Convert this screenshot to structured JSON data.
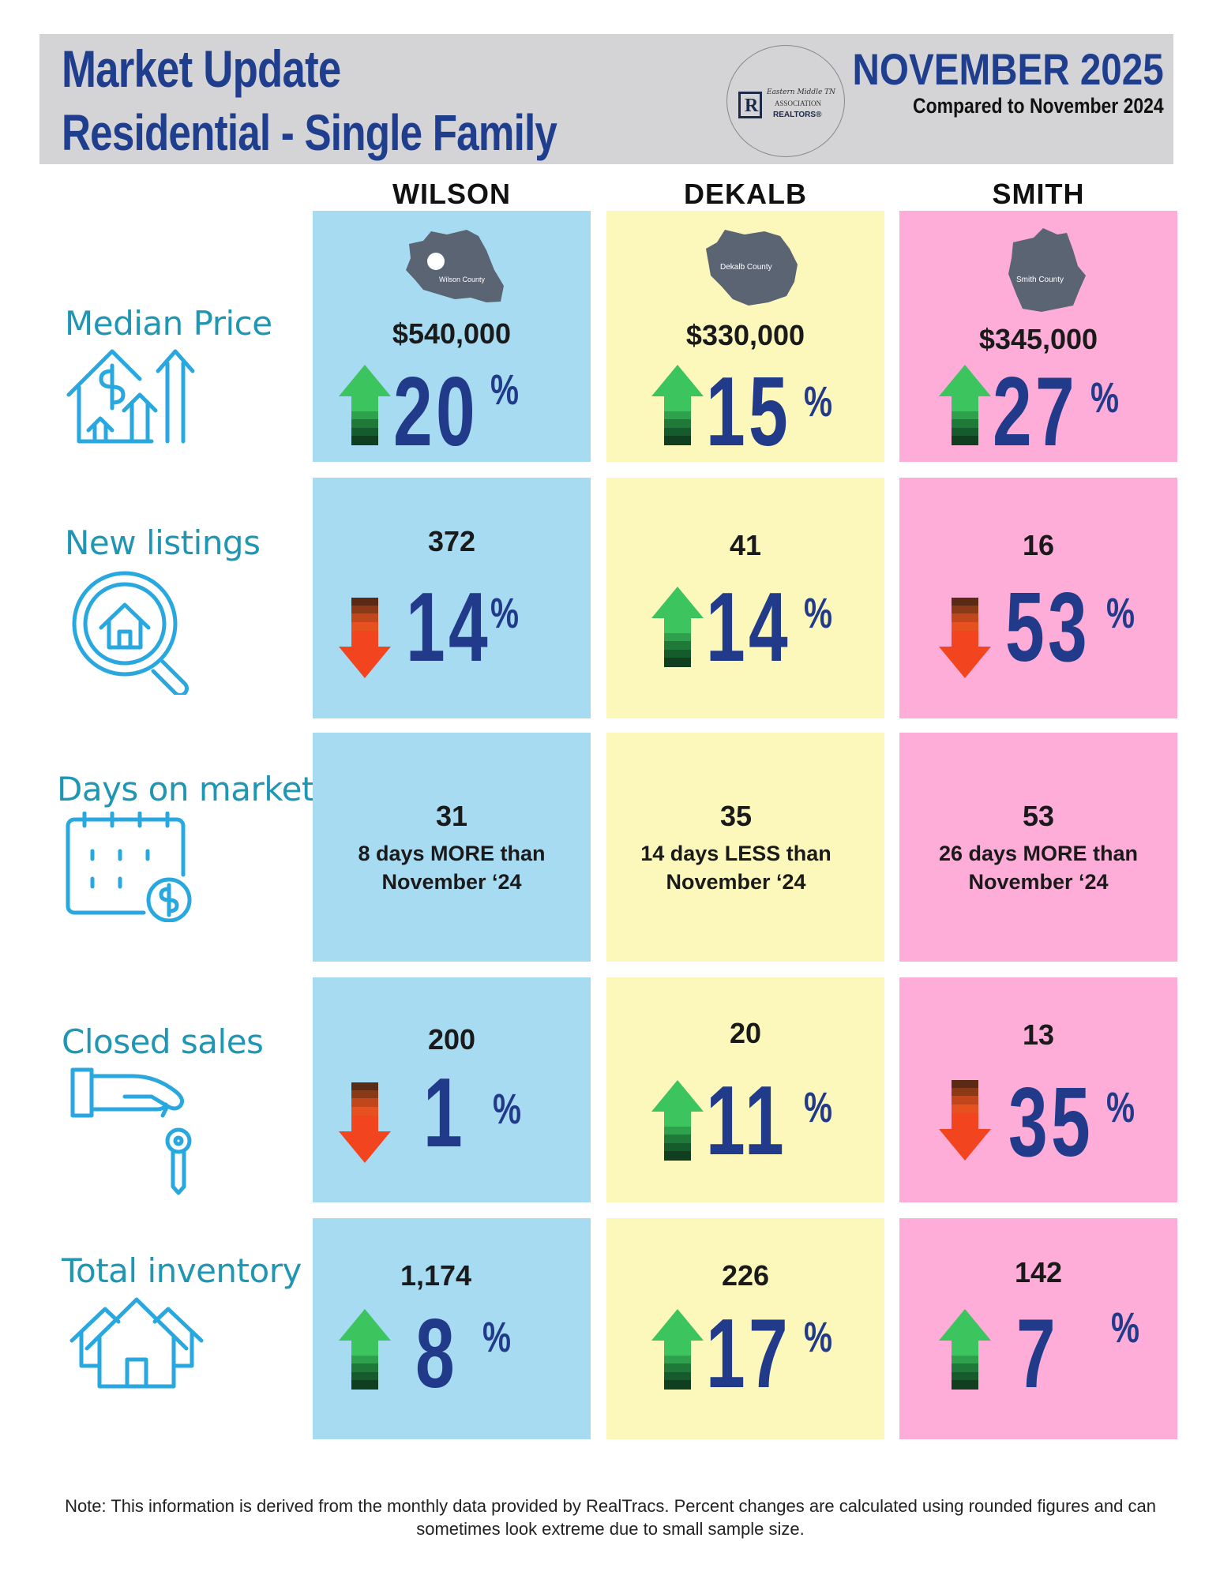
{
  "header": {
    "title": "Market Update",
    "subtitle": "Residential - Single Family",
    "month": "NOVEMBER 2025",
    "compare": "Compared to November 2024",
    "logo_line1": "Eastern Middle TN",
    "logo_line2": "ASSOCIATION",
    "logo_line3": "REALTORS®"
  },
  "columns": [
    "WILSON",
    "DEKALB",
    "SMITH"
  ],
  "maps": [
    "Wilson County",
    "Dekalb County",
    "Smith County"
  ],
  "rows": {
    "median_price": {
      "label": "Median Price",
      "values": [
        "$540,000",
        "$330,000",
        "$345,000"
      ],
      "pct": [
        "20",
        "15",
        "27"
      ],
      "direction": [
        "up",
        "up",
        "up"
      ]
    },
    "new_listings": {
      "label": "New listings",
      "values": [
        "372",
        "41",
        "16"
      ],
      "pct": [
        "14",
        "14",
        "53"
      ],
      "direction": [
        "down",
        "up",
        "down"
      ]
    },
    "days_on_market": {
      "label": "Days on market",
      "values": [
        "31",
        "35",
        "53"
      ],
      "notes_line1": [
        "8 days MORE than",
        "14 days LESS than",
        "26 days MORE than"
      ],
      "notes_line2": [
        "November ‘24",
        "November ‘24",
        "November ‘24"
      ]
    },
    "closed_sales": {
      "label": "Closed sales",
      "values": [
        "200",
        "20",
        "13"
      ],
      "pct": [
        "1",
        "11",
        "35"
      ],
      "direction": [
        "down",
        "up",
        "down"
      ]
    },
    "total_inventory": {
      "label": "Total inventory",
      "values": [
        "1,174",
        "226",
        "142"
      ],
      "pct": [
        "8",
        "17",
        "7"
      ],
      "direction": [
        "up",
        "up",
        "up"
      ]
    }
  },
  "percent_sign": "%",
  "note": "Note: This information is derived from the monthly data provided by RealTracs. Percent changes are calculated using rounded figures and can sometimes look extreme due to small sample size.",
  "colors": {
    "wilson": "#a7dbf2",
    "dekalb": "#fcf8bb",
    "smith": "#fdadd7",
    "heading": "#1f3e8e",
    "label": "#1f96b3",
    "up_arrow": "#3cc45e",
    "down_arrow": "#f2441f"
  },
  "icons": [
    "house-dollar-rising-icon",
    "magnifier-house-icon",
    "calendar-dollar-icon",
    "hand-key-icon",
    "houses-icon"
  ]
}
